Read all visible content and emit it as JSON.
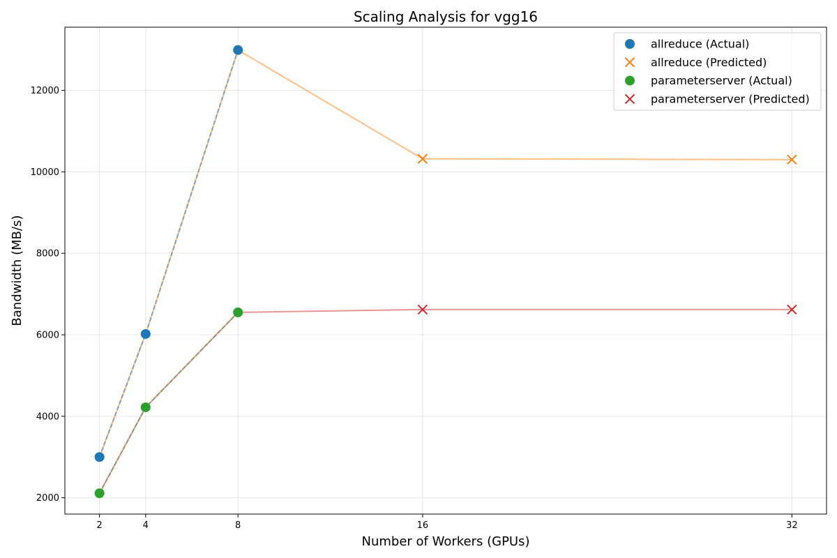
{
  "chart_data": {
    "type": "scatter",
    "title": "Scaling Analysis for vgg16",
    "xlabel": "Number of Workers (GPUs)",
    "ylabel": "Bandwidth (MB/s)",
    "xlim": [
      0.5,
      33.5
    ],
    "ylim": [
      1600,
      13550
    ],
    "xticks": [
      2,
      4,
      8,
      16,
      32
    ],
    "yticks": [
      2000,
      4000,
      6000,
      8000,
      10000,
      12000
    ],
    "grid": true,
    "legend_position": "top-right",
    "series": [
      {
        "name": "allreduce (Actual)",
        "marker": "circle",
        "color": "#1f77b4",
        "points": [
          [
            2,
            3000
          ],
          [
            4,
            6020
          ],
          [
            8,
            12990
          ]
        ]
      },
      {
        "name": "allreduce (Predicted)",
        "marker": "x",
        "color": "#ff7f0e",
        "points": [
          [
            16,
            10320
          ],
          [
            32,
            10300
          ]
        ]
      },
      {
        "name": "parameterserver (Actual)",
        "marker": "circle",
        "color": "#2ca02c",
        "points": [
          [
            2,
            2110
          ],
          [
            4,
            4220
          ],
          [
            8,
            6550
          ]
        ]
      },
      {
        "name": "parameterserver (Predicted)",
        "marker": "x",
        "color": "#d62728",
        "points": [
          [
            16,
            6620
          ],
          [
            32,
            6620
          ]
        ]
      }
    ],
    "lines": [
      {
        "color": "#ff7f0e",
        "opacity": 0.5,
        "dashed": false,
        "points": [
          [
            2,
            3000
          ],
          [
            4,
            6020
          ],
          [
            8,
            12990
          ],
          [
            16,
            10320
          ],
          [
            32,
            10300
          ]
        ]
      },
      {
        "color": "#1f77b4",
        "opacity": 0.5,
        "dashed": true,
        "points": [
          [
            2,
            3000
          ],
          [
            4,
            6020
          ],
          [
            8,
            12990
          ]
        ]
      },
      {
        "color": "#d62728",
        "opacity": 0.5,
        "dashed": false,
        "points": [
          [
            2,
            2110
          ],
          [
            4,
            4220
          ],
          [
            8,
            6550
          ],
          [
            16,
            6620
          ],
          [
            32,
            6620
          ]
        ]
      },
      {
        "color": "#2ca02c",
        "opacity": 0.5,
        "dashed": true,
        "points": [
          [
            2,
            2110
          ],
          [
            4,
            4220
          ],
          [
            8,
            6550
          ]
        ]
      }
    ]
  }
}
